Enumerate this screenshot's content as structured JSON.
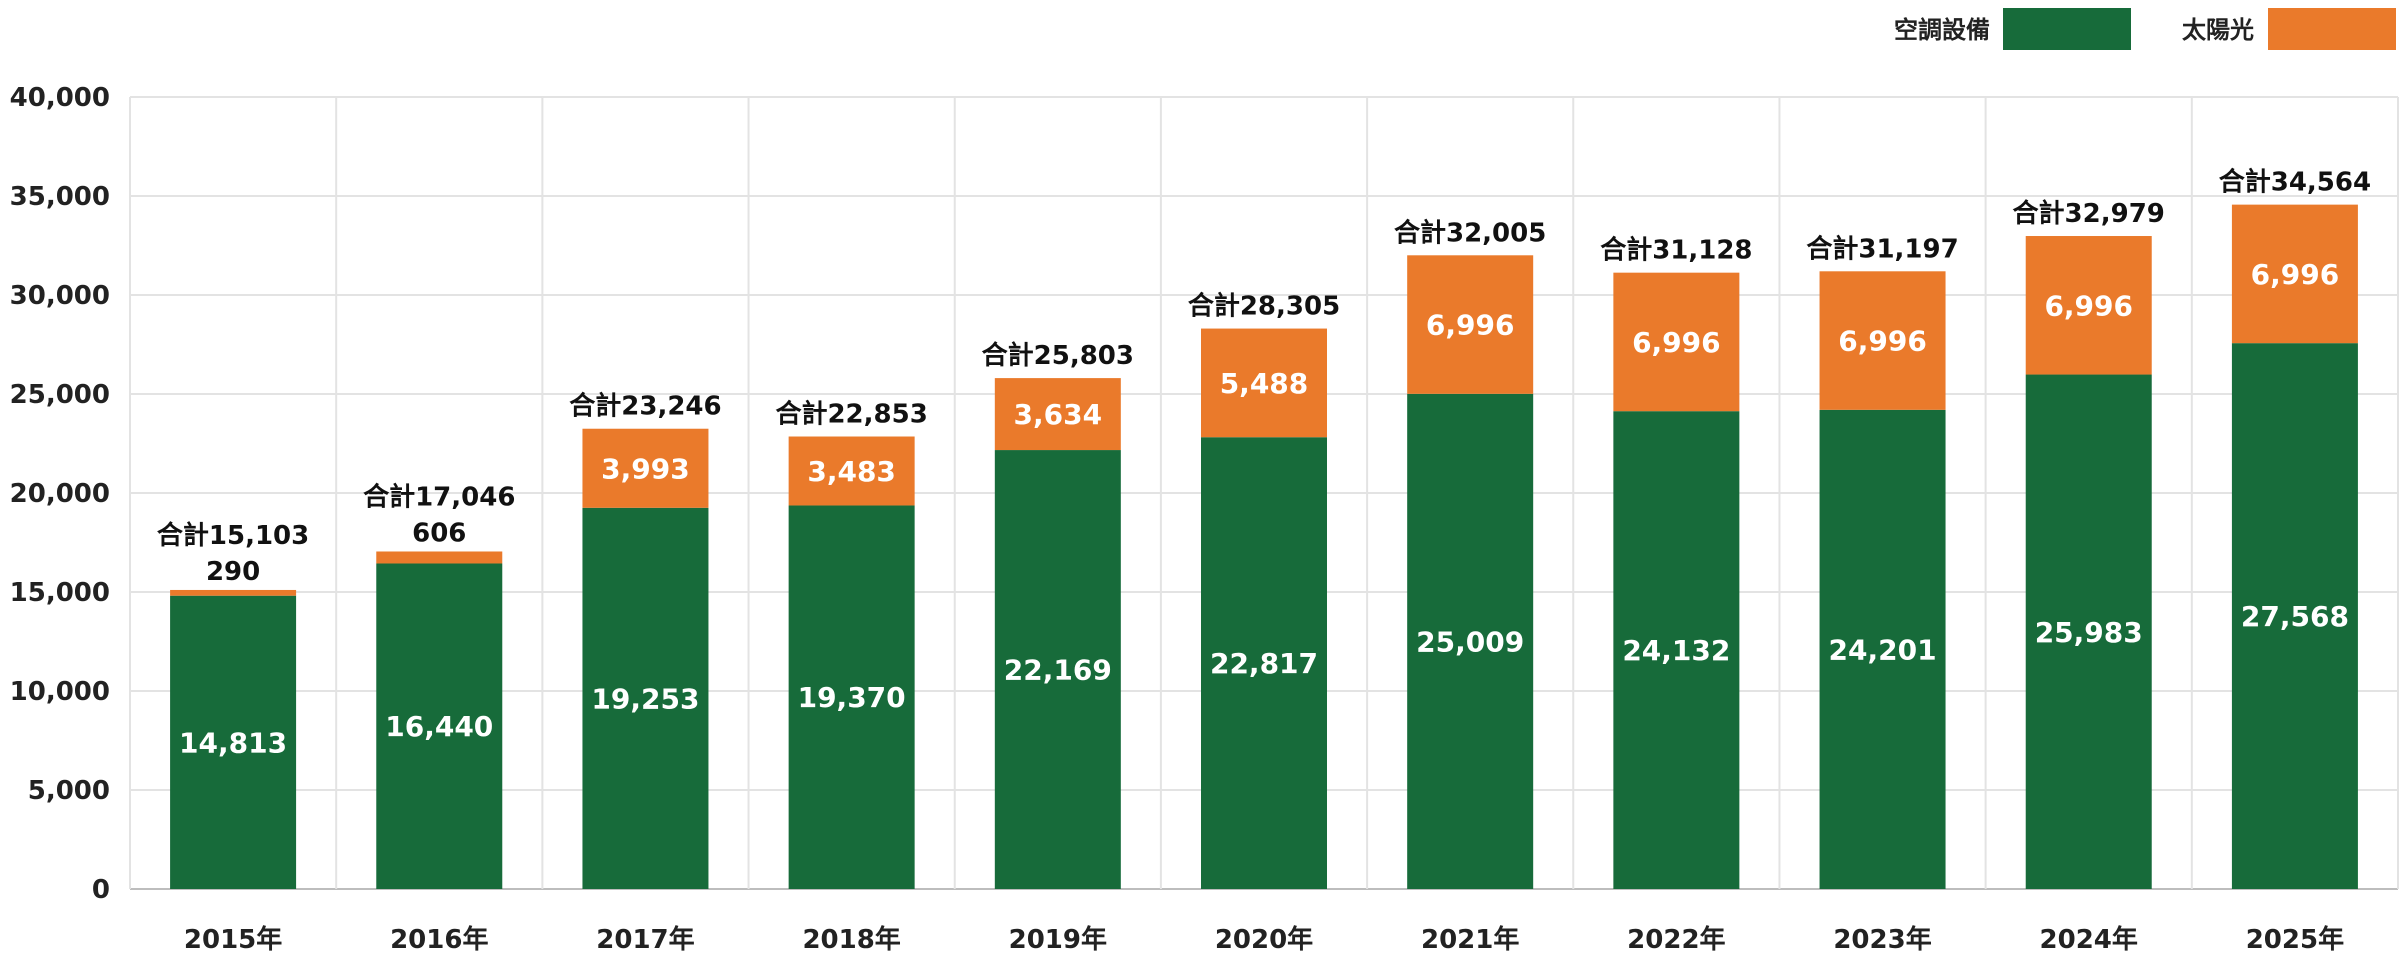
{
  "chart_data": {
    "type": "bar",
    "stacked": true,
    "categories": [
      "2015年",
      "2016年",
      "2017年",
      "2018年",
      "2019年",
      "2020年",
      "2021年",
      "2022年",
      "2023年",
      "2024年",
      "2025年"
    ],
    "series": [
      {
        "name": "空調設備",
        "color": "#176b3a",
        "values": [
          14813,
          16440,
          19253,
          19370,
          22169,
          22817,
          25009,
          24132,
          24201,
          25983,
          27568
        ]
      },
      {
        "name": "太陽光",
        "color": "#ea7a2b",
        "values": [
          290,
          606,
          3993,
          3483,
          3634,
          5488,
          6996,
          6996,
          6996,
          6996,
          6996
        ]
      }
    ],
    "totals": [
      "合計15,103",
      "合計17,046",
      "合計23,246",
      "合計22,853",
      "合計25,803",
      "合計28,305",
      "合計32,005",
      "合計31,128",
      "合計31,197",
      "合計32,979",
      "合計34,564"
    ],
    "value_labels": {
      "series0": [
        "14,813",
        "16,440",
        "19,253",
        "19,370",
        "22,169",
        "22,817",
        "25,009",
        "24,132",
        "24,201",
        "25,983",
        "27,568"
      ],
      "series1": [
        "290",
        "606",
        "3,993",
        "3,483",
        "3,634",
        "5,488",
        "6,996",
        "6,996",
        "6,996",
        "6,996",
        "6,996"
      ]
    },
    "y_ticks": [
      0,
      5000,
      10000,
      15000,
      20000,
      25000,
      30000,
      35000,
      40000
    ],
    "y_tick_labels": [
      "0",
      "5,000",
      "10,000",
      "15,000",
      "20,000",
      "25,000",
      "30,000",
      "35,000",
      "40,000"
    ],
    "ylim": [
      0,
      40000
    ],
    "grid": true,
    "legend_position": "top-right",
    "title": "",
    "xlabel": "",
    "ylabel": ""
  }
}
